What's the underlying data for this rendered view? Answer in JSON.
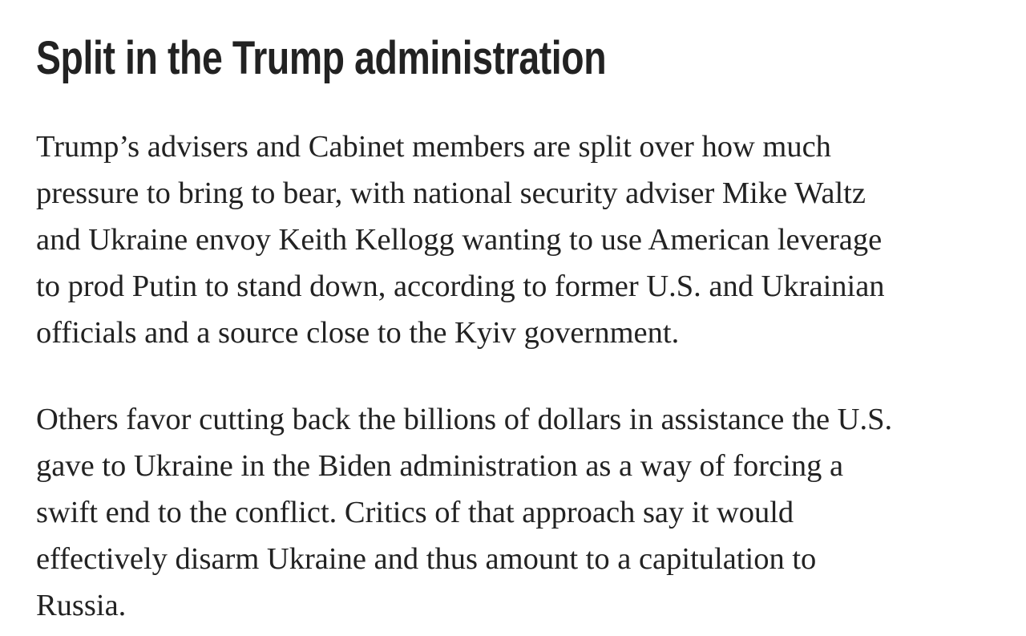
{
  "article": {
    "heading": "Split in the Trump administration",
    "paragraphs": [
      {
        "lines": [
          "Trump’s advisers and Cabinet members are split over how much",
          "pressure to bring to bear, with national security adviser Mike Waltz",
          "and Ukraine envoy Keith Kellogg wanting to use American leverage",
          "to prod Putin to stand down, according to former U.S. and Ukrainian",
          "officials and a source close to the Kyiv government."
        ]
      },
      {
        "lines": [
          "Others favor cutting back the billions of dollars in assistance the U.S.",
          "gave to Ukraine in the Biden administration as a way of forcing a",
          "swift end to the conflict. Critics of that approach say it would",
          "effectively disarm Ukraine and thus amount to a capitulation to",
          "Russia."
        ]
      }
    ]
  }
}
